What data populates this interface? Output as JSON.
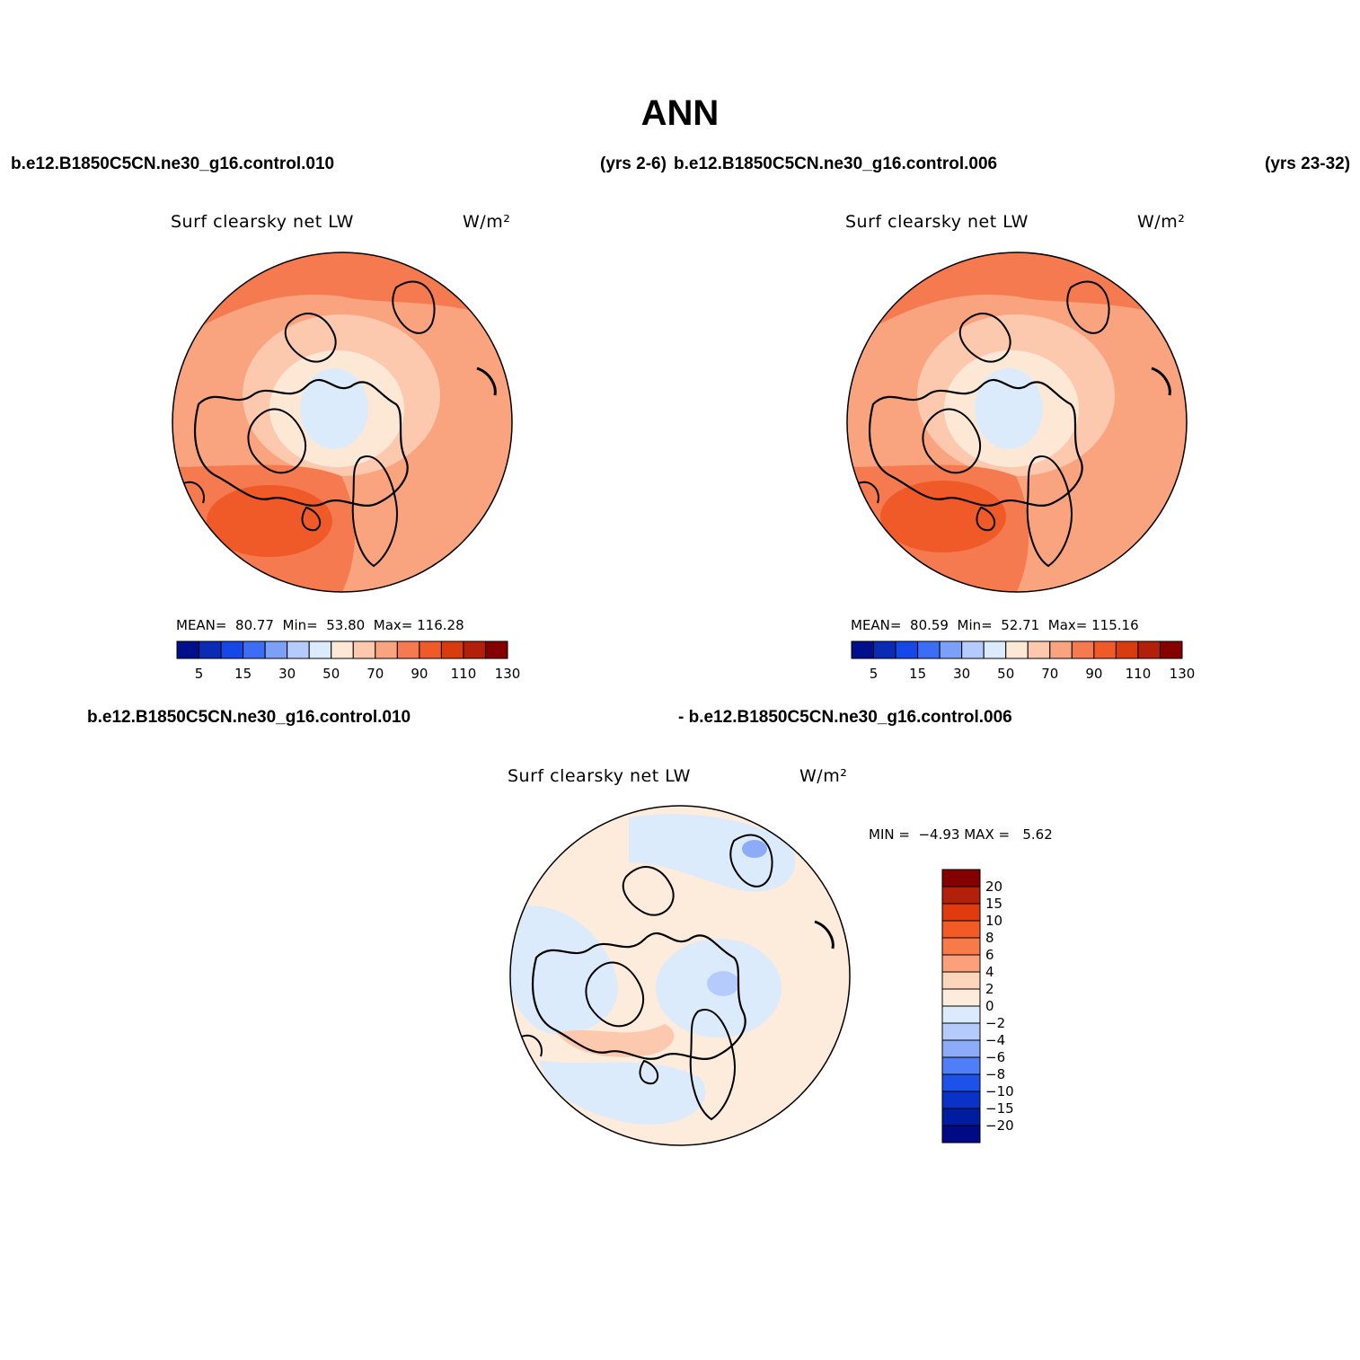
{
  "title": "ANN",
  "top_left_header": {
    "case": "b.e12.B1850C5CN.ne30_g16.control.010",
    "years": "(yrs 2-6)"
  },
  "top_right_header": {
    "case": "b.e12.B1850C5CN.ne30_g16.control.006",
    "years": "(yrs 23-32)"
  },
  "diff_header": {
    "left": "b.e12.B1850C5CN.ne30_g16.control.010",
    "right": "- b.e12.B1850C5CN.ne30_g16.control.006"
  },
  "panels": [
    {
      "id": "panel-a",
      "variable": "Surf clearsky net LW",
      "units": "W/m²",
      "mean_label": "MEAN=",
      "mean": "80.77",
      "min_label": "Min=",
      "min": "53.80",
      "max_label": "Max=",
      "max": "116.28"
    },
    {
      "id": "panel-b",
      "variable": "Surf clearsky net LW",
      "units": "W/m²",
      "mean_label": "MEAN=",
      "mean": "80.59",
      "min_label": "Min=",
      "min": "52.71",
      "max_label": "Max=",
      "max": "115.16"
    }
  ],
  "diff_panel": {
    "variable": "Surf clearsky net LW",
    "units": "W/m²",
    "min_label": "MIN =",
    "min": "−4.93",
    "max_label": "MAX =",
    "max": "5.62"
  },
  "colorbar_abs": {
    "colors": [
      "#000f8c",
      "#0a2bb4",
      "#1548e6",
      "#3b6ef5",
      "#7aa0fa",
      "#b4cbfc",
      "#dcebfc",
      "#fde8d6",
      "#fcc8ae",
      "#f9a37f",
      "#f67a4f",
      "#f05a28",
      "#d83c0e",
      "#b3200a",
      "#850000"
    ],
    "labels": [
      "5",
      "15",
      "30",
      "50",
      "70",
      "90",
      "110",
      "130"
    ]
  },
  "colorbar_diff": {
    "colors_top_to_bottom": [
      "#850000",
      "#b3200a",
      "#e03a0e",
      "#f35a25",
      "#f77a48",
      "#fba07a",
      "#fcd6bc",
      "#fdebdc",
      "#dcebfc",
      "#b4cbfc",
      "#8cabf9",
      "#4f7ef6",
      "#1d52ea",
      "#0a32c6",
      "#001c9f",
      "#000a85"
    ],
    "labels": [
      "20",
      "15",
      "10",
      "8",
      "6",
      "4",
      "2",
      "0",
      "−2",
      "−4",
      "−6",
      "−8",
      "−10",
      "−15",
      "−20"
    ]
  }
}
